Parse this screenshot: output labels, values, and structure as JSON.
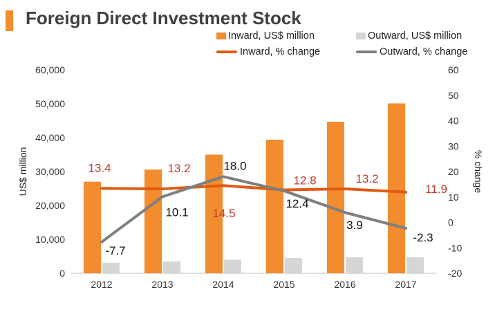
{
  "title": "Foreign Direct Investment Stock",
  "colors": {
    "inward_bar": "#f28c2e",
    "outward_bar": "#d6d6d6",
    "inward_line": "#e05a12",
    "outward_line": "#7f7f7f",
    "inward_label": "#c0392b",
    "accent": "#f28c2e"
  },
  "legend": {
    "inward_bar": "Inward, US$ million",
    "outward_bar": "Outward, US$ million",
    "inward_line": "Inward, % change",
    "outward_line": "Outward, % change"
  },
  "chart_data": {
    "type": "bar",
    "title": "Foreign Direct Investment Stock",
    "categories": [
      "2012",
      "2013",
      "2014",
      "2015",
      "2016",
      "2017"
    ],
    "ylabel": "US$ million",
    "y2label": "% change",
    "ylim": [
      0,
      60000
    ],
    "y2lim": [
      -20,
      60
    ],
    "yticks": [
      "0",
      "10,000",
      "20,000",
      "30,000",
      "40,000",
      "50,000",
      "60,000"
    ],
    "y2ticks": [
      "-20",
      "-10",
      "0",
      "10",
      "20",
      "30",
      "40",
      "50",
      "60"
    ],
    "series": [
      {
        "name": "Inward, US$ million",
        "type": "bar",
        "axis": "left",
        "values": [
          27000,
          30600,
          35000,
          39400,
          44700,
          50100
        ]
      },
      {
        "name": "Outward, US$ million",
        "type": "bar",
        "axis": "left",
        "values": [
          3100,
          3500,
          4000,
          4500,
          4700,
          4700
        ]
      },
      {
        "name": "Inward, % change",
        "type": "line",
        "axis": "right",
        "values": [
          13.4,
          13.2,
          14.5,
          12.8,
          13.2,
          11.9
        ],
        "labels": [
          "13.4",
          "13.2",
          "14.5",
          "12.8",
          "13.2",
          "11.9"
        ]
      },
      {
        "name": "Outward, % change",
        "type": "line",
        "axis": "right",
        "values": [
          -7.7,
          10.1,
          18.0,
          12.4,
          3.9,
          -2.3
        ],
        "labels": [
          "-7.7",
          "10.1",
          "18.0",
          "12.4",
          "3.9",
          "-2.3"
        ]
      }
    ]
  }
}
